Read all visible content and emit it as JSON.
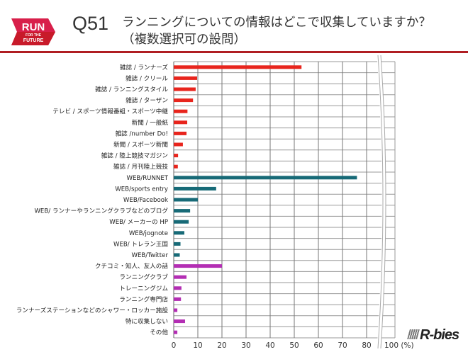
{
  "header": {
    "logo_text": "RUN FOR THE FUTURE",
    "question_number": "Q51",
    "title_line1": "ランニングについての情報はどこで収集していますか？",
    "title_line2": "（複数選択可の設問）"
  },
  "brand": "R-bies",
  "colors": {
    "magazine_news": "#e8251d",
    "web": "#176a77",
    "other": "#b32eb3",
    "header_rule": "#b01e23",
    "logo": "#d81f4a"
  },
  "chart_data": {
    "type": "bar",
    "orientation": "horizontal",
    "categories": [
      "雑誌 / ランナーズ",
      "雑誌 / クリール",
      "雑誌 / ランニングスタイル",
      "雑誌 / ターザン",
      "テレビ / スポーツ情報番組・スポーツ中継",
      "新聞 / 一般紙",
      "雑誌 /number Do!",
      "新聞 / スポーツ新聞",
      "雑誌 / 陸上競技マガジン",
      "雑誌 / 月刊陸上競技",
      "WEB/RUNNET",
      "WEB/sports entry",
      "WEB/Facebook",
      "WEB/ ランナーやランニングクラブなどのブログ",
      "WEB/ メーカーの HP",
      "WEB/jognote",
      "WEB/ トレラン王国",
      "WEB/Twitter",
      "クチコミ・知人、友人の話",
      "ランニングクラブ",
      "トレーニングジム",
      "ランニング専門店",
      "ランナーズステーションなどのシャワー・ロッカー施設",
      "特に収集しない",
      "その他"
    ],
    "values": [
      53,
      9.7,
      9.1,
      8,
      5.7,
      5.6,
      5.3,
      3.8,
      1.8,
      1.7,
      76,
      17.6,
      10,
      6.8,
      6.2,
      4.4,
      2.8,
      2.5,
      20,
      5.3,
      3.2,
      3,
      1.5,
      4.7,
      1.5
    ],
    "groups": [
      "magazine_news",
      "magazine_news",
      "magazine_news",
      "magazine_news",
      "magazine_news",
      "magazine_news",
      "magazine_news",
      "magazine_news",
      "magazine_news",
      "magazine_news",
      "web",
      "web",
      "web",
      "web",
      "web",
      "web",
      "web",
      "web",
      "other",
      "other",
      "other",
      "other",
      "other",
      "other",
      "other"
    ],
    "xticks": [
      "0",
      "10",
      "20",
      "30",
      "40",
      "50",
      "60",
      "70",
      "80",
      "100 (%)"
    ],
    "xlim": [
      0,
      100
    ],
    "axis_break": "between 80 and 100",
    "grid": true
  }
}
